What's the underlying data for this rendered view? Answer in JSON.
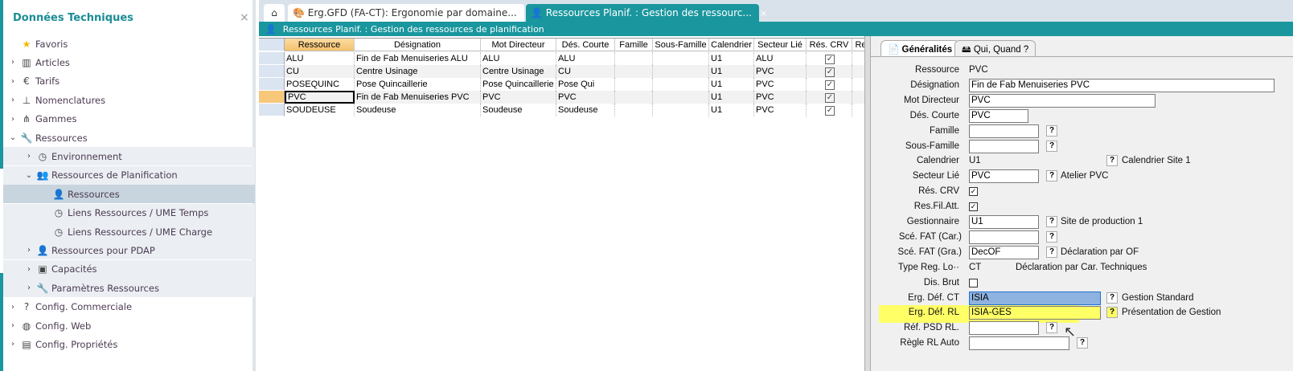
{
  "sidebar": {
    "title": "Données Techniques",
    "close": "×",
    "items": [
      {
        "label": "Favoris",
        "icon": "star-icon",
        "glyph": "★",
        "level": 0,
        "chev": ""
      },
      {
        "label": "Articles",
        "icon": "books-icon",
        "glyph": "▥",
        "level": 0,
        "chev": "›"
      },
      {
        "label": "Tarifs",
        "icon": "hand-euro-icon",
        "glyph": "€",
        "level": 0,
        "chev": "›"
      },
      {
        "label": "Nomenclatures",
        "icon": "hierarchy-icon",
        "glyph": "⊥",
        "level": 0,
        "chev": "›"
      },
      {
        "label": "Gammes",
        "icon": "flow-icon",
        "glyph": "⋔",
        "level": 0,
        "chev": "›"
      },
      {
        "label": "Ressources",
        "icon": "wrench-icon",
        "glyph": "🔧",
        "level": 0,
        "chev": "⌄"
      },
      {
        "label": "Environnement",
        "icon": "clock-icon",
        "glyph": "◷",
        "level": 1,
        "chev": "›"
      },
      {
        "label": "Ressources de Planification",
        "icon": "users-icon",
        "glyph": "👥",
        "level": 1,
        "chev": "⌄"
      },
      {
        "label": "Ressources",
        "icon": "user-icon",
        "glyph": "👤",
        "level": 2,
        "chev": "",
        "selected": true
      },
      {
        "label": "Liens Ressources /  UME Temps",
        "icon": "clock-icon",
        "glyph": "◷",
        "level": 2,
        "chev": ""
      },
      {
        "label": "Liens Ressources /  UME Charge",
        "icon": "clock-icon",
        "glyph": "◷",
        "level": 2,
        "chev": ""
      },
      {
        "label": "Ressources pour PDAP",
        "icon": "user-icon",
        "glyph": "👤",
        "level": 1,
        "chev": "›"
      },
      {
        "label": "Capacités",
        "icon": "folder-gear-icon",
        "glyph": "▣",
        "level": 1,
        "chev": "›"
      },
      {
        "label": "Paramètres Ressources",
        "icon": "wrench-icon",
        "glyph": "🔧",
        "level": 1,
        "chev": "›"
      },
      {
        "label": "Config. Commerciale",
        "icon": "question-circle-icon",
        "glyph": "?",
        "level": 0,
        "chev": "›"
      },
      {
        "label": "Config. Web",
        "icon": "globe-icon",
        "glyph": "◍",
        "level": 0,
        "chev": "›"
      },
      {
        "label": "Config. Propriétés",
        "icon": "cabinet-icon",
        "glyph": "▤",
        "level": 0,
        "chev": "›"
      }
    ]
  },
  "tabs": {
    "home_icon": "home-icon",
    "items": [
      {
        "label": "Erg.GFD (FA-CT): Ergonomie par domaine...",
        "close": "×",
        "icon": "palette-icon"
      },
      {
        "label": "Ressources Planif. : Gestion des ressourc...",
        "close": "×",
        "icon": "user-icon",
        "active": true
      }
    ]
  },
  "titlebar": {
    "label": "Ressources Planif. : Gestion des ressources de planification"
  },
  "grid": {
    "columns": [
      "Ressource",
      "Désignation",
      "Mot Directeur",
      "Dés. Courte",
      "Famille",
      "Sous-Famille",
      "Calendrier",
      "Secteur Lié",
      "Rés. CRV",
      "Re"
    ],
    "rows": [
      [
        "ALU",
        "Fin de Fab Menuiseries ALU",
        "ALU",
        "ALU",
        "",
        "",
        "U1",
        "ALU",
        true
      ],
      [
        "CU",
        "Centre Usinage",
        "Centre Usinage",
        "CU",
        "",
        "",
        "U1",
        "PVC",
        true
      ],
      [
        "POSEQUINC",
        "Pose Quincaillerie",
        "Pose Quincaillerie",
        "Pose Qui",
        "",
        "",
        "U1",
        "PVC",
        true
      ],
      [
        "PVC",
        "Fin de Fab Menuiseries PVC",
        "PVC",
        "PVC",
        "",
        "",
        "U1",
        "PVC",
        true
      ],
      [
        "SOUDEUSE",
        "Soudeuse",
        "Soudeuse",
        "Soudeuse",
        "",
        "",
        "U1",
        "PVC",
        true
      ]
    ],
    "current_row": 3
  },
  "panel": {
    "tabs": [
      "Généralités",
      "Qui, Quand ?"
    ],
    "labels": {
      "ressource": "Ressource",
      "designation": "Désignation",
      "mot": "Mot Directeur",
      "courte": "Dés. Courte",
      "famille": "Famille",
      "sousfam": "Sous-Famille",
      "calendrier": "Calendrier",
      "secteur": "Secteur Lié",
      "crv": "Rés. CRV",
      "filatt": "Res.Fil.Att.",
      "gestionnaire": "Gestionnaire",
      "scecar": "Scé. FAT (Car.)",
      "scegra": "Scé. FAT (Gra.)",
      "typereg": "Type Reg. Lo··",
      "disbrut": "Dis. Brut",
      "ergct": "Erg. Déf. CT",
      "ergrl": "Erg. Déf. RL",
      "refpsd": "Réf. PSD RL.",
      "regle": "Règle RL Auto"
    },
    "values": {
      "ressource": "PVC",
      "designation": "Fin de Fab Menuiseries PVC",
      "mot": "PVC",
      "courte": "PVC",
      "famille": "",
      "sousfam": "",
      "calendrier": "U1",
      "secteur": "PVC",
      "crv": true,
      "filatt": true,
      "gestionnaire": "U1",
      "scecar": "",
      "scegra": "DecOF",
      "typereg": "CT",
      "disbrut": false,
      "ergct": "ISIA",
      "ergrl": "ISIA-GES",
      "refpsd": "",
      "regle": ""
    },
    "descs": {
      "calendrier": "Calendrier Site 1",
      "secteur": "Atelier PVC",
      "gestionnaire": "Site de production 1",
      "scegra": "Déclaration par OF",
      "typereg": "Déclaration par Car. Techniques",
      "ergct": "Gestion Standard",
      "ergrl": "Présentation de Gestion"
    },
    "help": "?",
    "highlight_color": "#ffff66",
    "selected_color": "#8fb3e0"
  }
}
